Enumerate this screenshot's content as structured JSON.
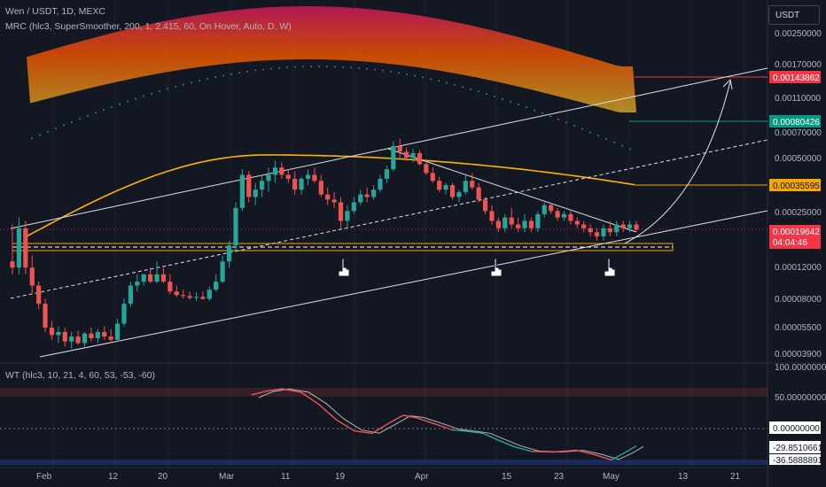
{
  "header": {
    "symbol_line": "Wen / USDT, 1D, MEXC",
    "indicator_line": "MRC (hlc3, SuperSmoother, 200, 1, 2.415, 60, On Hover, Auto, D, W)",
    "oscillator_line": "WT (hlc3, 10, 21, 4, 60, 53, -53, -60)",
    "currency": "USDT"
  },
  "price_axis": [
    "0.00250000",
    "0.00170000",
    "0.00110000",
    "0.00070000",
    "0.00050000",
    "0.00025000",
    "0.00012000",
    "0.00008000",
    "0.00005500",
    "0.00003900"
  ],
  "price_tags": {
    "red_level": "0.00143862",
    "green_level": "0.00080426",
    "orange_level": "0.00035595",
    "last_price": "0.00019642",
    "countdown": "04:04:46"
  },
  "osc_axis": {
    "top": "100.00000000",
    "mid": "50.00000000",
    "zero": "0.00000000",
    "wt1": "-29.85106615",
    "wt2": "-36.58888918"
  },
  "time_axis": [
    "Feb",
    "12",
    "20",
    "Mar",
    "11",
    "19",
    "Apr",
    "15",
    "23",
    "May",
    "13",
    "21"
  ],
  "colors": {
    "bull": "#26a69a",
    "bear": "#ef5350",
    "mean": "#ffb300",
    "red_tag": "#f23645",
    "green_tag": "#089981",
    "orange_tag": "#f7a600"
  },
  "chart_data": {
    "type": "candlestick",
    "scale": "log",
    "ylim": [
      3.5e-05,
      0.0032
    ],
    "x_days": {
      "start": "Jan 27",
      "end": "May 6"
    },
    "candles": [
      [
        0.00013,
        0.00021,
        0.00011,
        0.00012
      ],
      [
        0.00012,
        0.00023,
        0.00011,
        0.0002
      ],
      [
        0.0002,
        0.00022,
        0.00011,
        0.00012
      ],
      [
        0.00012,
        0.00014,
        8.5e-05,
        9.5e-05
      ],
      [
        9.5e-05,
        0.0001,
        7e-05,
        7.5e-05
      ],
      [
        7.5e-05,
        8e-05,
        5.2e-05,
        5.5e-05
      ],
      [
        5.5e-05,
        6e-05,
        4.7e-05,
        5e-05
      ],
      [
        5e-05,
        5.6e-05,
        4.5e-05,
        5.2e-05
      ],
      [
        5.2e-05,
        5.5e-05,
        4.3e-05,
        4.6e-05
      ],
      [
        4.6e-05,
        5.2e-05,
        4.2e-05,
        4.9e-05
      ],
      [
        4.9e-05,
        5.3e-05,
        4.4e-05,
        4.5e-05
      ],
      [
        4.5e-05,
        5.2e-05,
        4.3e-05,
        5.1e-05
      ],
      [
        5.1e-05,
        5.5e-05,
        4.6e-05,
        4.8e-05
      ],
      [
        4.8e-05,
        5.4e-05,
        4.5e-05,
        5.2e-05
      ],
      [
        5.2e-05,
        5.6e-05,
        4.7e-05,
        4.9e-05
      ],
      [
        4.9e-05,
        5.4e-05,
        4.5e-05,
        4.7e-05
      ],
      [
        4.7e-05,
        6.2e-05,
        4.6e-05,
        5.8e-05
      ],
      [
        5.8e-05,
        8e-05,
        5.6e-05,
        7.5e-05
      ],
      [
        7.5e-05,
        0.0001,
        7.2e-05,
        9.5e-05
      ],
      [
        9.5e-05,
        0.00011,
        8.8e-05,
        0.0001
      ],
      [
        0.0001,
        0.00011,
        9.5e-05,
        0.00011
      ],
      [
        0.00011,
        0.00012,
        9.8e-05,
        0.0001
      ],
      [
        0.0001,
        0.00013,
        9.8e-05,
        0.00011
      ],
      [
        0.00011,
        0.00012,
        9.8e-05,
        0.0001
      ],
      [
        0.0001,
        0.00011,
        8.5e-05,
        8.8e-05
      ],
      [
        8.8e-05,
        9.5e-05,
        8.2e-05,
        8.4e-05
      ],
      [
        8.4e-05,
        9e-05,
        8e-05,
        8.3e-05
      ],
      [
        8.3e-05,
        8.8e-05,
        7.9e-05,
        8.1e-05
      ],
      [
        8.1e-05,
        8.7e-05,
        7.8e-05,
        8.2e-05
      ],
      [
        8.2e-05,
        8.8e-05,
        7.9e-05,
        8e-05
      ],
      [
        8e-05,
        9.4e-05,
        7.8e-05,
        9e-05
      ],
      [
        9e-05,
        0.00011,
        8.8e-05,
        0.0001
      ],
      [
        0.0001,
        0.00014,
        9.8e-05,
        0.00013
      ],
      [
        0.00013,
        0.00017,
        0.00012,
        0.00016
      ],
      [
        0.00016,
        0.00028,
        0.00015,
        0.00026
      ],
      [
        0.00026,
        0.00043,
        0.00025,
        0.0004
      ],
      [
        0.0004,
        0.00042,
        0.00028,
        0.0003
      ],
      [
        0.0003,
        0.00036,
        0.00027,
        0.00033
      ],
      [
        0.00033,
        0.0004,
        0.0003,
        0.00037
      ],
      [
        0.00037,
        0.00044,
        0.00032,
        0.0004
      ],
      [
        0.0004,
        0.00048,
        0.00036,
        0.00044
      ],
      [
        0.00044,
        0.00047,
        0.00038,
        0.0004
      ],
      [
        0.0004,
        0.00043,
        0.00036,
        0.00038
      ],
      [
        0.00038,
        0.00042,
        0.00031,
        0.00033
      ],
      [
        0.00033,
        0.00039,
        0.00031,
        0.00038
      ],
      [
        0.00038,
        0.00043,
        0.00035,
        0.0004
      ],
      [
        0.0004,
        0.00044,
        0.00036,
        0.00037
      ],
      [
        0.00037,
        0.0004,
        0.0003,
        0.00031
      ],
      [
        0.00031,
        0.00034,
        0.00027,
        0.00029
      ],
      [
        0.00029,
        0.00032,
        0.00026,
        0.00028
      ],
      [
        0.00028,
        0.0003,
        0.0002,
        0.00022
      ],
      [
        0.00022,
        0.00027,
        0.0002,
        0.00025
      ],
      [
        0.00025,
        0.0003,
        0.00024,
        0.00028
      ],
      [
        0.00028,
        0.00033,
        0.00027,
        0.00031
      ],
      [
        0.00031,
        0.00034,
        0.00028,
        0.0003
      ],
      [
        0.0003,
        0.00035,
        0.00029,
        0.00033
      ],
      [
        0.00033,
        0.0004,
        0.00032,
        0.00038
      ],
      [
        0.00038,
        0.00045,
        0.00036,
        0.00043
      ],
      [
        0.00043,
        0.00062,
        0.00042,
        0.00058
      ],
      [
        0.00058,
        0.00064,
        0.0005,
        0.00054
      ],
      [
        0.00054,
        0.00057,
        0.00048,
        0.0005
      ],
      [
        0.0005,
        0.00056,
        0.00047,
        0.00053
      ],
      [
        0.00053,
        0.00055,
        0.00045,
        0.00046
      ],
      [
        0.00046,
        0.00049,
        0.0004,
        0.00041
      ],
      [
        0.00041,
        0.00044,
        0.00036,
        0.00037
      ],
      [
        0.00037,
        0.00039,
        0.00032,
        0.00033
      ],
      [
        0.00033,
        0.00036,
        0.00031,
        0.00035
      ],
      [
        0.00035,
        0.00036,
        0.00029,
        0.0003
      ],
      [
        0.0003,
        0.00033,
        0.00028,
        0.00032
      ],
      [
        0.00032,
        0.0004,
        0.00031,
        0.00037
      ],
      [
        0.00037,
        0.00041,
        0.00033,
        0.00034
      ],
      [
        0.00034,
        0.00036,
        0.00028,
        0.00029
      ],
      [
        0.00029,
        0.0003,
        0.00024,
        0.00025
      ],
      [
        0.00025,
        0.00027,
        0.00021,
        0.00022
      ],
      [
        0.00022,
        0.00023,
        0.00019,
        0.0002
      ],
      [
        0.0002,
        0.00024,
        0.00019,
        0.00023
      ],
      [
        0.00023,
        0.00026,
        0.0002,
        0.00021
      ],
      [
        0.00021,
        0.00023,
        0.00019,
        0.0002
      ],
      [
        0.0002,
        0.00024,
        0.00019,
        0.00022
      ],
      [
        0.00022,
        0.00023,
        0.00019,
        0.0002
      ],
      [
        0.0002,
        0.00025,
        0.00019,
        0.00024
      ],
      [
        0.00024,
        0.00028,
        0.00023,
        0.00027
      ],
      [
        0.00027,
        0.00028,
        0.00024,
        0.00025
      ],
      [
        0.00025,
        0.00026,
        0.00022,
        0.00023
      ],
      [
        0.00023,
        0.00025,
        0.00022,
        0.00024
      ],
      [
        0.00024,
        0.00025,
        0.00021,
        0.00022
      ],
      [
        0.00022,
        0.00023,
        0.0002,
        0.00021
      ],
      [
        0.00021,
        0.00022,
        0.00019,
        0.0002
      ],
      [
        0.0002,
        0.00021,
        0.00018,
        0.00019
      ],
      [
        0.00019,
        0.0002,
        0.00017,
        0.00018
      ],
      [
        0.00018,
        0.00021,
        0.00017,
        0.0002
      ],
      [
        0.0002,
        0.00022,
        0.00018,
        0.00019
      ],
      [
        0.00019,
        0.00022,
        0.00018,
        0.00021
      ],
      [
        0.00021,
        0.00022,
        0.00019,
        0.0002
      ],
      [
        0.0002,
        0.00022,
        0.00019,
        0.00021
      ],
      [
        0.00021,
        0.00022,
        0.00019,
        0.00019642
      ]
    ]
  }
}
